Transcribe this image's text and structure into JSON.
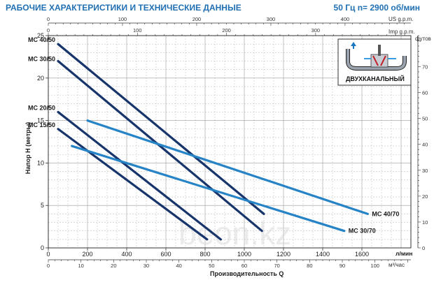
{
  "chart_data": {
    "type": "line",
    "title": "РАБОЧИЕ ХАРАКТЕРИСТИКИ И ТЕХНИЧЕСКИЕ ДАННЫЕ",
    "subtitle": "50 Гц  n= 2900 об/мин",
    "ylabel": "Напор H (метры)",
    "xlabel": "Производительность Q",
    "x_unit_primary": "л/мин",
    "x_unit_secondary": "м³/час",
    "top_unit_us": "US g.p.m.",
    "top_unit_imp": "Imp g.p.m.",
    "right_unit": "футов",
    "inset_label": "ДВУХКАНАЛЬНЫЙ",
    "watermark": "beon.kz",
    "xlim": [
      0,
      1850
    ],
    "ylim": [
      0,
      25
    ],
    "grid": true,
    "x_ticks_primary": [
      {
        "v": 0,
        "label": "0"
      },
      {
        "v": 200,
        "label": "200"
      },
      {
        "v": 400,
        "label": "400"
      },
      {
        "v": 600,
        "label": "600"
      },
      {
        "v": 800,
        "label": "800"
      },
      {
        "v": 1000,
        "label": "1000"
      },
      {
        "v": 1200,
        "label": "1200"
      },
      {
        "v": 1400,
        "label": "1400"
      },
      {
        "v": 1600,
        "label": "1600"
      }
    ],
    "x_ticks_m3h": [
      {
        "v": 0,
        "label": "0"
      },
      {
        "v": 10,
        "label": "10"
      },
      {
        "v": 20,
        "label": "20"
      },
      {
        "v": 30,
        "label": "30"
      },
      {
        "v": 40,
        "label": "40"
      },
      {
        "v": 50,
        "label": "50"
      },
      {
        "v": 60,
        "label": "60"
      },
      {
        "v": 70,
        "label": "70"
      },
      {
        "v": 80,
        "label": "80"
      },
      {
        "v": 90,
        "label": "90"
      },
      {
        "v": 100,
        "label": "100"
      }
    ],
    "x_ticks_us": [
      {
        "v": 0,
        "label": "0"
      },
      {
        "v": 100,
        "label": "100"
      },
      {
        "v": 200,
        "label": "200"
      },
      {
        "v": 300,
        "label": "300"
      },
      {
        "v": 400,
        "label": "400"
      }
    ],
    "x_ticks_imp": [
      {
        "v": 0,
        "label": "0"
      },
      {
        "v": 100,
        "label": "100"
      },
      {
        "v": 200,
        "label": "200"
      },
      {
        "v": 300,
        "label": "300"
      }
    ],
    "y_ticks": [
      {
        "v": 0,
        "label": "0"
      },
      {
        "v": 5,
        "label": "5"
      },
      {
        "v": 10,
        "label": "10"
      },
      {
        "v": 15,
        "label": "15"
      },
      {
        "v": 20,
        "label": "20"
      },
      {
        "v": 25,
        "label": "25"
      }
    ],
    "y_ticks_ft": [
      {
        "v": 0,
        "label": "0"
      },
      {
        "v": 10,
        "label": "10"
      },
      {
        "v": 20,
        "label": "20"
      },
      {
        "v": 30,
        "label": "30"
      },
      {
        "v": 40,
        "label": "40"
      },
      {
        "v": 50,
        "label": "50"
      },
      {
        "v": 60,
        "label": "60"
      },
      {
        "v": 70,
        "label": "70"
      }
    ],
    "series": [
      {
        "name": "MC 40/50",
        "color": "#17356b",
        "x": [
          50,
          1100
        ],
        "y": [
          24,
          4
        ],
        "label_side": "start"
      },
      {
        "name": "MC 30/50",
        "color": "#17356b",
        "x": [
          50,
          1090
        ],
        "y": [
          22,
          2
        ],
        "label_side": "start"
      },
      {
        "name": "MC 20/50",
        "color": "#17356b",
        "x": [
          50,
          880
        ],
        "y": [
          16,
          1
        ],
        "label_side": "start"
      },
      {
        "name": "MC 15/50",
        "color": "#17356b",
        "x": [
          50,
          810
        ],
        "y": [
          14,
          1
        ],
        "label_side": "start"
      },
      {
        "name": "MC 40/70",
        "color": "#2684c6",
        "x": [
          200,
          1630
        ],
        "y": [
          15,
          4
        ],
        "label_side": "end"
      },
      {
        "name": "MC 30/70",
        "color": "#2684c6",
        "x": [
          120,
          1510
        ],
        "y": [
          12,
          2
        ],
        "label_side": "end"
      }
    ]
  }
}
